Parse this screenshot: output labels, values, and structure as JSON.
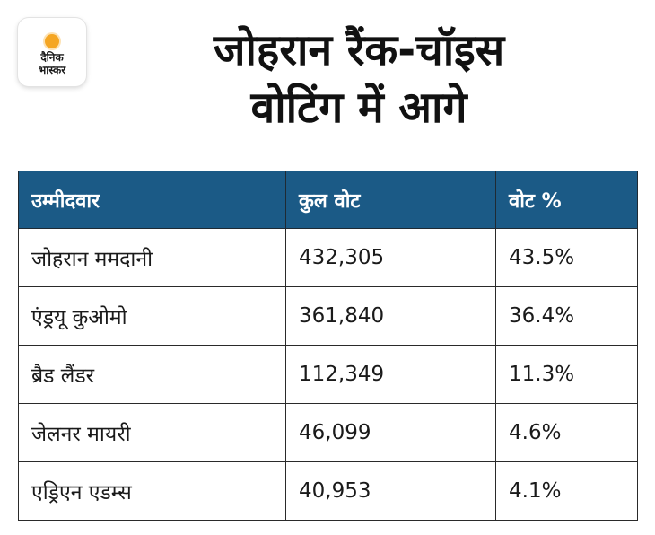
{
  "logo": {
    "line1": "दैनिक",
    "line2": "भास्कर",
    "accent_color": "#f5a623"
  },
  "title": {
    "line1": "जोहरान रैंक-चॉइस",
    "line2": "वोटिंग में आगे"
  },
  "chart_data": {
    "type": "table",
    "header_color": "#1b5a86",
    "columns": [
      "उम्मीदवार",
      "कुल वोट",
      "वोट %"
    ],
    "rows": [
      [
        "जोहरान ममदानी",
        "432,305",
        "43.5%"
      ],
      [
        "एंड्रयू कुओमो",
        "361,840",
        "36.4%"
      ],
      [
        "ब्रैड लैंडर",
        "112,349",
        "11.3%"
      ],
      [
        "जेलनर मायरी",
        "46,099",
        "4.6%"
      ],
      [
        "एड्रिएन एडम्स",
        "40,953",
        "4.1%"
      ]
    ]
  }
}
